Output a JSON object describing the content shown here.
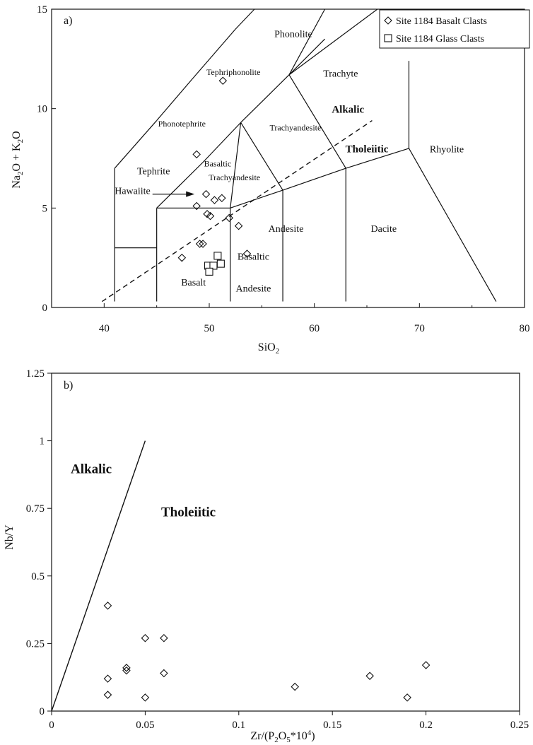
{
  "colors": {
    "ink": "#111111",
    "background": "#ffffff"
  },
  "chart_data": [
    {
      "type": "scatter",
      "panel_label": "a)",
      "xlabel": "SiO2",
      "ylabel": "Na2O + K2O",
      "xlim": [
        35,
        80
      ],
      "ylim": [
        0,
        15
      ],
      "xticks": [
        40,
        50,
        60,
        70,
        80
      ],
      "yticks": [
        0,
        5,
        10,
        15
      ],
      "grid": false,
      "legend_position": "top-right",
      "legend": [
        "Site 1184 Basalt Clasts",
        "Site 1184 Glass Clasts"
      ],
      "series": [
        {
          "name": "Site 1184 Basalt Clasts",
          "marker": "diamond",
          "x": [
            51.3,
            48.8,
            49.7,
            50.5,
            51.2,
            48.8,
            49.8,
            50.1,
            51.9,
            52.8,
            49.1,
            49.4,
            53.6,
            47.4
          ],
          "y": [
            11.4,
            7.7,
            5.7,
            5.4,
            5.5,
            5.1,
            4.7,
            4.6,
            4.5,
            4.1,
            3.2,
            3.2,
            2.7,
            2.5
          ]
        },
        {
          "name": "Site 1184 Glass Clasts",
          "marker": "square",
          "x": [
            50.8,
            49.9,
            50.4,
            51.1,
            50.0
          ],
          "y": [
            2.6,
            2.1,
            2.1,
            2.2,
            1.8
          ]
        }
      ],
      "field_labels": [
        "Phonolite",
        "Tephriphonolite",
        "Trachyte",
        "Phonotephrite",
        "Trachyandesite",
        "Alkalic",
        "Tholeiitic",
        "Rhyolite",
        "Tephrite",
        "Basaltic",
        "Trachyandesite",
        "Hawaiite",
        "Andesite",
        "Dacite",
        "Basalt",
        "Basaltic",
        "Andesite"
      ]
    },
    {
      "type": "scatter",
      "panel_label": "b)",
      "xlabel": "Zr/(P2O5*10^4)",
      "ylabel": "Nb/Y",
      "xlim": [
        0,
        0.25
      ],
      "ylim": [
        0,
        1.25
      ],
      "xticks": [
        "0",
        "0.05",
        "0.1",
        "0.15",
        "0.2",
        "0.25"
      ],
      "yticks": [
        "0",
        "0.25",
        "0.5",
        "0.75",
        "1",
        "1.25"
      ],
      "grid": false,
      "divider_line": {
        "from": [
          0,
          0
        ],
        "to": [
          0.05,
          1.0
        ]
      },
      "region_labels": [
        "Alkalic",
        "Tholeiitic"
      ],
      "series": [
        {
          "marker": "diamond",
          "x": [
            0.03,
            0.05,
            0.06,
            0.04,
            0.04,
            0.03,
            0.06,
            0.03,
            0.05,
            0.13,
            0.17,
            0.19,
            0.2
          ],
          "y": [
            0.39,
            0.27,
            0.27,
            0.16,
            0.15,
            0.12,
            0.14,
            0.06,
            0.05,
            0.09,
            0.13,
            0.05,
            0.17
          ]
        }
      ]
    }
  ]
}
